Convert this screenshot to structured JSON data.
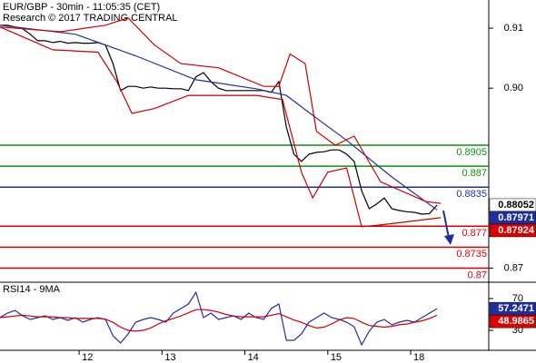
{
  "chart_data": [
    {
      "type": "line",
      "title": "EUR/GBP - 30min - 11:05:35 (CET)",
      "subtitle": "Research © 2017 TRADING CENTRAL",
      "xlim": [
        0,
        64.5
      ],
      "ylim": [
        0.8678,
        0.9147
      ],
      "yticks": [
        0.91,
        {
          "value": 0.9,
          "label": "0.90"
        },
        0.88,
        0.87
      ],
      "series": [
        {
          "color": "#000000",
          "x": [
            0,
            1,
            2,
            3,
            4,
            5,
            6,
            7,
            8,
            9,
            10,
            11,
            12,
            13,
            14,
            15,
            16,
            17,
            18,
            19,
            20,
            21,
            22,
            23,
            24,
            25,
            26,
            27,
            28,
            29,
            30,
            31,
            32,
            33,
            34,
            35,
            36,
            37,
            38,
            39,
            40,
            41,
            42,
            43,
            44,
            45,
            46,
            47,
            48,
            49,
            50,
            51,
            52,
            53,
            54,
            55,
            56,
            57,
            58
          ],
          "values": [
            0.9105,
            0.9105,
            0.9102,
            0.9099,
            0.909,
            0.9079,
            0.9079,
            0.9076,
            0.9078,
            0.9075,
            0.9076,
            0.9075,
            0.9075,
            0.9076,
            0.9072,
            0.9041,
            0.8996,
            0.9003,
            0.9003,
            0.9,
            0.9002,
            0.9,
            0.9,
            0.8999,
            0.8999,
            0.8996,
            0.9019,
            0.9026,
            0.9011,
            0.9,
            0.8996,
            0.8996,
            0.8996,
            0.8996,
            0.8996,
            0.8996,
            0.8993,
            0.9011,
            0.8935,
            0.889,
            0.8878,
            0.889,
            0.8893,
            0.8894,
            0.8897,
            0.8897,
            0.889,
            0.8878,
            0.8829,
            0.8799,
            0.8807,
            0.8817,
            0.8799,
            0.8796,
            0.8794,
            0.8793,
            0.879,
            0.8791,
            0.88052
          ]
        },
        {
          "color": "#2030a0",
          "x": [
            0,
            10,
            18,
            26,
            34,
            38,
            42,
            46,
            52,
            58
          ],
          "values": [
            0.9105,
            0.909,
            0.9054,
            0.9014,
            0.8999,
            0.8988,
            0.895,
            0.8913,
            0.8852,
            0.87971
          ]
        },
        {
          "color": "#cc0000",
          "x": [
            0,
            8,
            14,
            17,
            20.5,
            24,
            29,
            35,
            37,
            38.5,
            40.5,
            42,
            44.5,
            47,
            50.5,
            56.5,
            58.5
          ],
          "values": [
            0.9102,
            0.9094,
            0.9105,
            0.9117,
            0.9072,
            0.9041,
            0.9034,
            0.9003,
            0.9003,
            0.9057,
            0.9041,
            0.8928,
            0.8905,
            0.892,
            0.8844,
            0.8811,
            0.8808
          ]
        },
        {
          "color": "#cc0000",
          "x": [
            0,
            7,
            13,
            15.5,
            17.5,
            20.5,
            25,
            34,
            37.5,
            40,
            41.5,
            43.5,
            46,
            48,
            50.5,
            56.5,
            58.5
          ],
          "values": [
            0.9102,
            0.9064,
            0.906,
            0.9011,
            0.8958,
            0.8966,
            0.8988,
            0.8988,
            0.8981,
            0.886,
            0.8817,
            0.886,
            0.8867,
            0.8769,
            0.8772,
            0.8781,
            0.8784
          ]
        }
      ],
      "levels": [
        {
          "value": 0.8905,
          "color": "#109010"
        },
        {
          "value": 0.887,
          "color": "#109010"
        },
        {
          "value": 0.8835,
          "color": "#1f2fa0"
        },
        {
          "value": 0.877,
          "color": "#dd0000"
        },
        {
          "value": 0.8735,
          "color": "#dd0000"
        },
        {
          "value": 0.87,
          "color": "#dd0000"
        }
      ],
      "tags": [
        {
          "value": 0.88052,
          "color": "#ffffff"
        },
        {
          "value": 0.87971,
          "color": "#1f2fa0"
        },
        {
          "value": 0.87924,
          "color": "#dd0000"
        }
      ]
    },
    {
      "type": "line",
      "title": "RSI14 - 9MA",
      "xlim": [
        0,
        64.5
      ],
      "ylim": [
        6,
        89.4
      ],
      "yticks": [
        70,
        30
      ],
      "xticks": [
        {
          "value": 10.5,
          "label": "12"
        },
        {
          "value": 21.5,
          "label": "13"
        },
        {
          "value": 32.5,
          "label": "14"
        },
        {
          "value": 43.5,
          "label": "15"
        },
        {
          "value": 54.5,
          "label": "18"
        }
      ],
      "series": [
        {
          "color": "#2030a0",
          "x": [
            0,
            1,
            2,
            3,
            4,
            5,
            6,
            7,
            8,
            9,
            10,
            11,
            12,
            13,
            14,
            15,
            16,
            17,
            18,
            19,
            20,
            21,
            22,
            23,
            24,
            25,
            26,
            27,
            28,
            29,
            30,
            31,
            32,
            33,
            34,
            35,
            36,
            37,
            38,
            39,
            40,
            41,
            42,
            43,
            44,
            45,
            46,
            47,
            48,
            49,
            50,
            51,
            52,
            53,
            54,
            55,
            56,
            57,
            58
          ],
          "values": [
            46.0,
            51.7,
            55.1,
            48.3,
            43.7,
            46.0,
            48.3,
            43.7,
            46.0,
            42.6,
            46.0,
            40.3,
            43.7,
            46.0,
            43.7,
            23.1,
            14.0,
            25.4,
            40.3,
            43.7,
            46.0,
            43.7,
            40.3,
            51.7,
            57.4,
            63.1,
            78.0,
            46.0,
            51.7,
            43.7,
            46.0,
            48.3,
            43.7,
            51.7,
            46.0,
            43.7,
            57.4,
            63.1,
            17.4,
            17.4,
            25.4,
            40.3,
            46.0,
            51.7,
            46.0,
            43.7,
            40.3,
            34.6,
            11.7,
            28.9,
            40.3,
            43.7,
            36.9,
            40.3,
            42.6,
            40.3,
            46.0,
            51.7,
            57.2471
          ]
        },
        {
          "color": "#cc0000",
          "x": [
            0,
            1,
            2,
            3,
            4,
            5,
            6,
            7,
            8,
            9,
            10,
            11,
            12,
            13,
            14,
            15,
            16,
            17,
            18,
            19,
            20,
            21,
            22,
            23,
            24,
            25,
            26,
            27,
            28,
            29,
            30,
            31,
            32,
            33,
            34,
            35,
            36,
            37,
            38,
            39,
            40,
            41,
            42,
            43,
            44,
            45,
            46,
            47,
            48,
            49,
            50,
            51,
            52,
            53,
            54,
            55,
            56,
            57,
            58
          ],
          "values": [
            46,
            47,
            48,
            49,
            48,
            47,
            47,
            47,
            46,
            46,
            45,
            45,
            45,
            45,
            44,
            40,
            34,
            30,
            29,
            30,
            33,
            38,
            42,
            45,
            48,
            52,
            56,
            56,
            55,
            53,
            50,
            48,
            47,
            47,
            47,
            47,
            49,
            51,
            47,
            43,
            40,
            36,
            33,
            34,
            38,
            43,
            46,
            45,
            40,
            36,
            35,
            34,
            35,
            37,
            38,
            40,
            42,
            45,
            48.9865
          ]
        }
      ],
      "tags": [
        {
          "value": 57.2471,
          "color": "#1f2fa0"
        },
        {
          "value": 48.9865,
          "color": "#dd0000"
        }
      ]
    }
  ]
}
